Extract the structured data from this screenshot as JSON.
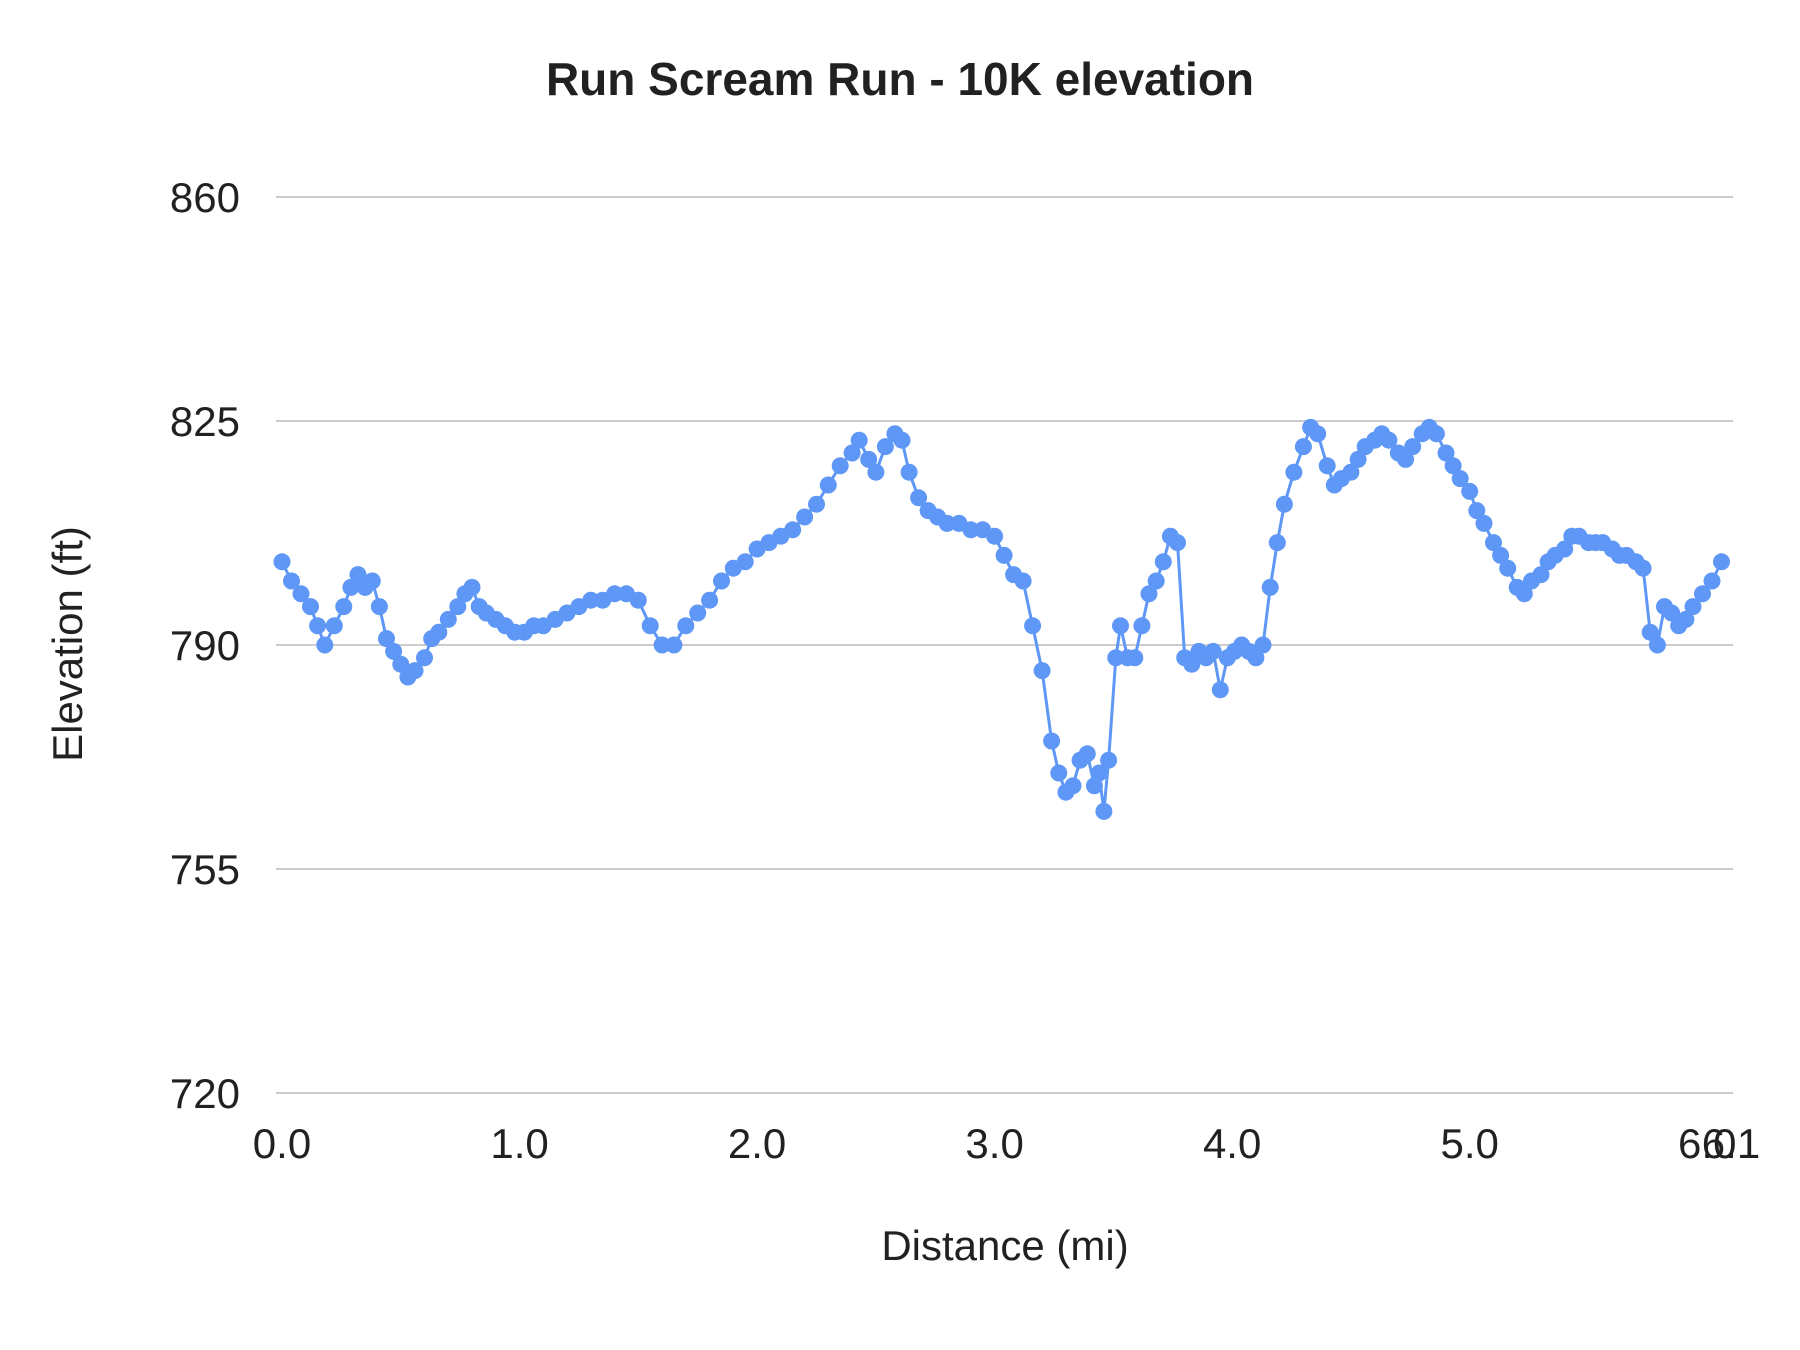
{
  "chart_data": {
    "type": "line",
    "title": "Run Scream Run - 10K elevation",
    "xlabel": "Distance (mi)",
    "ylabel": "Elevation (ft)",
    "xlim": [
      0.0,
      6.1
    ],
    "ylim": [
      720,
      860
    ],
    "grid": "horizontal",
    "legend": "none",
    "series_name": "Elevation",
    "series_color": "#5e97f6",
    "gridline_color": "#cccccc",
    "y_ticks": [
      860,
      825,
      790,
      755,
      720
    ],
    "x_ticks": [
      {
        "label": "0.0",
        "value": 0.0
      },
      {
        "label": "1.0",
        "value": 1.0
      },
      {
        "label": "2.0",
        "value": 2.0
      },
      {
        "label": "3.0",
        "value": 3.0
      },
      {
        "label": "4.0",
        "value": 4.0
      },
      {
        "label": "5.0",
        "value": 5.0
      },
      {
        "label": "6.0",
        "value": 6.0
      },
      {
        "label": "6.1",
        "value": 6.1
      }
    ],
    "points": [
      [
        0.0,
        803
      ],
      [
        0.04,
        800
      ],
      [
        0.08,
        798
      ],
      [
        0.12,
        796
      ],
      [
        0.15,
        793
      ],
      [
        0.18,
        790
      ],
      [
        0.22,
        793
      ],
      [
        0.26,
        796
      ],
      [
        0.29,
        799
      ],
      [
        0.32,
        801
      ],
      [
        0.35,
        799
      ],
      [
        0.38,
        800
      ],
      [
        0.41,
        796
      ],
      [
        0.44,
        791
      ],
      [
        0.47,
        789
      ],
      [
        0.5,
        787
      ],
      [
        0.53,
        785
      ],
      [
        0.56,
        786
      ],
      [
        0.6,
        788
      ],
      [
        0.63,
        791
      ],
      [
        0.66,
        792
      ],
      [
        0.7,
        794
      ],
      [
        0.74,
        796
      ],
      [
        0.77,
        798
      ],
      [
        0.8,
        799
      ],
      [
        0.83,
        796
      ],
      [
        0.86,
        795
      ],
      [
        0.9,
        794
      ],
      [
        0.94,
        793
      ],
      [
        0.98,
        792
      ],
      [
        1.02,
        792
      ],
      [
        1.06,
        793
      ],
      [
        1.1,
        793
      ],
      [
        1.15,
        794
      ],
      [
        1.2,
        795
      ],
      [
        1.25,
        796
      ],
      [
        1.3,
        797
      ],
      [
        1.35,
        797
      ],
      [
        1.4,
        798
      ],
      [
        1.45,
        798
      ],
      [
        1.5,
        797
      ],
      [
        1.55,
        793
      ],
      [
        1.6,
        790
      ],
      [
        1.65,
        790
      ],
      [
        1.7,
        793
      ],
      [
        1.75,
        795
      ],
      [
        1.8,
        797
      ],
      [
        1.85,
        800
      ],
      [
        1.9,
        802
      ],
      [
        1.95,
        803
      ],
      [
        2.0,
        805
      ],
      [
        2.05,
        806
      ],
      [
        2.1,
        807
      ],
      [
        2.15,
        808
      ],
      [
        2.2,
        810
      ],
      [
        2.25,
        812
      ],
      [
        2.3,
        815
      ],
      [
        2.35,
        818
      ],
      [
        2.4,
        820
      ],
      [
        2.43,
        822
      ],
      [
        2.47,
        819
      ],
      [
        2.5,
        817
      ],
      [
        2.54,
        821
      ],
      [
        2.58,
        823
      ],
      [
        2.61,
        822
      ],
      [
        2.64,
        817
      ],
      [
        2.68,
        813
      ],
      [
        2.72,
        811
      ],
      [
        2.76,
        810
      ],
      [
        2.8,
        809
      ],
      [
        2.85,
        809
      ],
      [
        2.9,
        808
      ],
      [
        2.95,
        808
      ],
      [
        3.0,
        807
      ],
      [
        3.04,
        804
      ],
      [
        3.08,
        801
      ],
      [
        3.12,
        800
      ],
      [
        3.16,
        793
      ],
      [
        3.2,
        786
      ],
      [
        3.24,
        775
      ],
      [
        3.27,
        770
      ],
      [
        3.3,
        767
      ],
      [
        3.33,
        768
      ],
      [
        3.36,
        772
      ],
      [
        3.39,
        773
      ],
      [
        3.42,
        768
      ],
      [
        3.44,
        770
      ],
      [
        3.46,
        764
      ],
      [
        3.48,
        772
      ],
      [
        3.51,
        788
      ],
      [
        3.53,
        793
      ],
      [
        3.56,
        788
      ],
      [
        3.59,
        788
      ],
      [
        3.62,
        793
      ],
      [
        3.65,
        798
      ],
      [
        3.68,
        800
      ],
      [
        3.71,
        803
      ],
      [
        3.74,
        807
      ],
      [
        3.77,
        806
      ],
      [
        3.8,
        788
      ],
      [
        3.83,
        787
      ],
      [
        3.86,
        789
      ],
      [
        3.89,
        788
      ],
      [
        3.92,
        789
      ],
      [
        3.95,
        783
      ],
      [
        3.98,
        788
      ],
      [
        4.01,
        789
      ],
      [
        4.04,
        790
      ],
      [
        4.07,
        789
      ],
      [
        4.1,
        788
      ],
      [
        4.13,
        790
      ],
      [
        4.16,
        799
      ],
      [
        4.19,
        806
      ],
      [
        4.22,
        812
      ],
      [
        4.26,
        817
      ],
      [
        4.3,
        821
      ],
      [
        4.33,
        824
      ],
      [
        4.36,
        823
      ],
      [
        4.4,
        818
      ],
      [
        4.43,
        815
      ],
      [
        4.46,
        816
      ],
      [
        4.5,
        817
      ],
      [
        4.53,
        819
      ],
      [
        4.56,
        821
      ],
      [
        4.6,
        822
      ],
      [
        4.63,
        823
      ],
      [
        4.66,
        822
      ],
      [
        4.7,
        820
      ],
      [
        4.73,
        819
      ],
      [
        4.76,
        821
      ],
      [
        4.8,
        823
      ],
      [
        4.83,
        824
      ],
      [
        4.86,
        823
      ],
      [
        4.9,
        820
      ],
      [
        4.93,
        818
      ],
      [
        4.96,
        816
      ],
      [
        5.0,
        814
      ],
      [
        5.03,
        811
      ],
      [
        5.06,
        809
      ],
      [
        5.1,
        806
      ],
      [
        5.13,
        804
      ],
      [
        5.16,
        802
      ],
      [
        5.2,
        799
      ],
      [
        5.23,
        798
      ],
      [
        5.26,
        800
      ],
      [
        5.3,
        801
      ],
      [
        5.33,
        803
      ],
      [
        5.36,
        804
      ],
      [
        5.4,
        805
      ],
      [
        5.43,
        807
      ],
      [
        5.46,
        807
      ],
      [
        5.5,
        806
      ],
      [
        5.53,
        806
      ],
      [
        5.56,
        806
      ],
      [
        5.6,
        805
      ],
      [
        5.63,
        804
      ],
      [
        5.66,
        804
      ],
      [
        5.7,
        803
      ],
      [
        5.73,
        802
      ],
      [
        5.76,
        792
      ],
      [
        5.79,
        790
      ],
      [
        5.82,
        796
      ],
      [
        5.85,
        795
      ],
      [
        5.88,
        793
      ],
      [
        5.91,
        794
      ],
      [
        5.94,
        796
      ],
      [
        5.98,
        798
      ],
      [
        6.02,
        800
      ],
      [
        6.06,
        803
      ]
    ]
  }
}
